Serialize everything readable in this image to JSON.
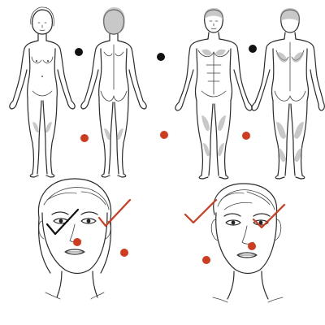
{
  "colors": {
    "line_ink": "#2b2b2b",
    "marker_black": "#111111",
    "marker_red": "#d03a1e",
    "check_red": "#d03a1e",
    "check_black": "#111111",
    "background": "#ffffff"
  },
  "figures": [
    {
      "id": "female-front",
      "view": "front",
      "sex": "female"
    },
    {
      "id": "female-back",
      "view": "back",
      "sex": "female"
    },
    {
      "id": "male-front",
      "view": "front",
      "sex": "male"
    },
    {
      "id": "male-back",
      "view": "back",
      "sex": "male"
    }
  ],
  "faces": [
    {
      "id": "face-left",
      "view": "front"
    },
    {
      "id": "face-right",
      "view": "front"
    }
  ],
  "markers": [
    {
      "id": "black-dot-1",
      "color": "black"
    },
    {
      "id": "black-dot-2",
      "color": "black"
    },
    {
      "id": "black-dot-3",
      "color": "black"
    },
    {
      "id": "red-dot-1",
      "color": "red"
    },
    {
      "id": "red-dot-2",
      "color": "red"
    },
    {
      "id": "red-dot-3",
      "color": "red"
    },
    {
      "id": "red-dot-4",
      "color": "red"
    },
    {
      "id": "red-dot-5",
      "color": "red"
    },
    {
      "id": "red-dot-6",
      "color": "red"
    },
    {
      "id": "red-dot-7",
      "color": "red"
    }
  ],
  "checkmarks": [
    {
      "id": "check-black-1",
      "color": "black"
    },
    {
      "id": "check-red-1",
      "color": "red"
    },
    {
      "id": "check-red-2",
      "color": "red"
    },
    {
      "id": "check-red-3",
      "color": "red"
    }
  ]
}
